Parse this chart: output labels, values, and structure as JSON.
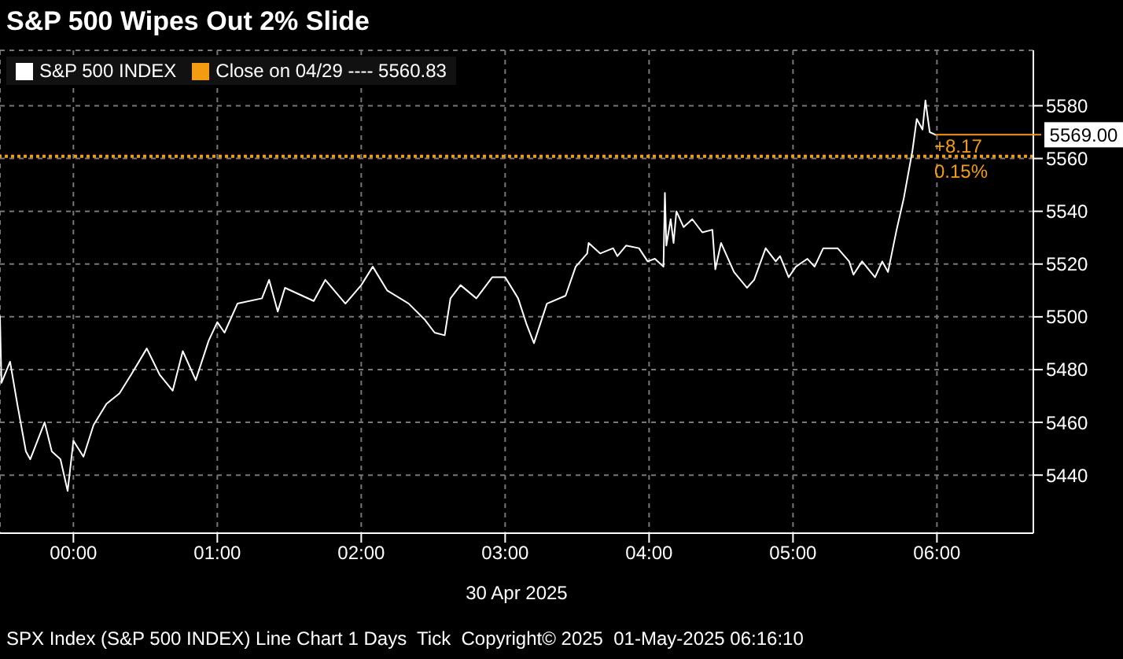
{
  "chart_data": {
    "type": "line",
    "title": "S&P 500 Wipes Out 2% Slide",
    "xlabel": "30 Apr 2025",
    "x": [
      -0.51,
      -0.5,
      -0.44,
      -0.39,
      -0.33,
      -0.3,
      -0.2,
      -0.15,
      -0.09,
      -0.04,
      0.0,
      0.07,
      0.14,
      0.23,
      0.32,
      0.4,
      0.51,
      0.6,
      0.69,
      0.76,
      0.85,
      0.94,
      1.0,
      1.05,
      1.14,
      1.31,
      1.36,
      1.42,
      1.47,
      1.67,
      1.75,
      1.89,
      2.0,
      2.08,
      2.18,
      2.33,
      2.44,
      2.51,
      2.58,
      2.62,
      2.69,
      2.8,
      2.91,
      3.0,
      3.09,
      3.15,
      3.2,
      3.29,
      3.42,
      3.49,
      3.57,
      3.58,
      3.66,
      3.75,
      3.78,
      3.84,
      3.93,
      3.99,
      4.04,
      4.1,
      4.11,
      4.12,
      4.15,
      4.17,
      4.19,
      4.24,
      4.3,
      4.37,
      4.44,
      4.46,
      4.5,
      4.59,
      4.68,
      4.73,
      4.81,
      4.88,
      4.91,
      4.97,
      5.02,
      5.1,
      5.15,
      5.21,
      5.31,
      5.39,
      5.42,
      5.48,
      5.57,
      5.62,
      5.66,
      5.72,
      5.77,
      5.83,
      5.86,
      5.9,
      5.92,
      5.95,
      5.99
    ],
    "series": [
      {
        "name": "S&P 500 INDEX",
        "color": "#ffffff",
        "values": [
          5500,
          5475,
          5483,
          5467,
          5449,
          5446,
          5460,
          5449,
          5446,
          5434,
          5453,
          5447,
          5459,
          5467,
          5471,
          5478,
          5488,
          5478,
          5472,
          5487,
          5476,
          5491,
          5498,
          5494,
          5505,
          5507,
          5514,
          5502,
          5511,
          5506,
          5514,
          5505,
          5512,
          5519,
          5510,
          5505,
          5499,
          5494,
          5493,
          5507,
          5512,
          5507,
          5515,
          5515,
          5507,
          5497,
          5490,
          5505,
          5508,
          5519,
          5524,
          5528,
          5524,
          5526,
          5523,
          5527,
          5526,
          5521,
          5522,
          5519,
          5547,
          5527,
          5537,
          5528,
          5540,
          5534,
          5537,
          5532,
          5533,
          5518,
          5528,
          5517,
          5511,
          5514,
          5526,
          5521,
          5523,
          5515,
          5519,
          5522,
          5519,
          5526,
          5526,
          5521,
          5516,
          5521,
          5515,
          5521,
          5517,
          5533,
          5545,
          5563,
          5575,
          5571,
          5582,
          5570,
          5569
        ]
      }
    ],
    "xlim": [
      -0.51,
      6.67
    ],
    "xticks": [
      {
        "value": 0,
        "label": "00:00"
      },
      {
        "value": 1,
        "label": "01:00"
      },
      {
        "value": 2,
        "label": "02:00"
      },
      {
        "value": 3,
        "label": "03:00"
      },
      {
        "value": 4,
        "label": "04:00"
      },
      {
        "value": 5,
        "label": "05:00"
      },
      {
        "value": 6,
        "label": "06:00"
      }
    ],
    "ylim": [
      5418,
      5601
    ],
    "yticks": [
      5440,
      5460,
      5480,
      5500,
      5520,
      5540,
      5560,
      5580
    ],
    "ref_lines": [
      {
        "axis": "y",
        "value": 5560.83,
        "label": "Close on 04/29 ---- 5560.83",
        "color": "#f39c12",
        "line_style": "dotted"
      }
    ],
    "annotations": [
      {
        "text": "5569.00",
        "x": 5.99,
        "y": 5569
      },
      "+8.17",
      "0.15%",
      "SPX Index (S&P 500 INDEX) Line Chart 1 Days  Tick  Copyright© 2025  01-May-2025 06:16:10"
    ],
    "grid": true,
    "legend": "top left",
    "marker": "none",
    "line_style": "solid"
  }
}
